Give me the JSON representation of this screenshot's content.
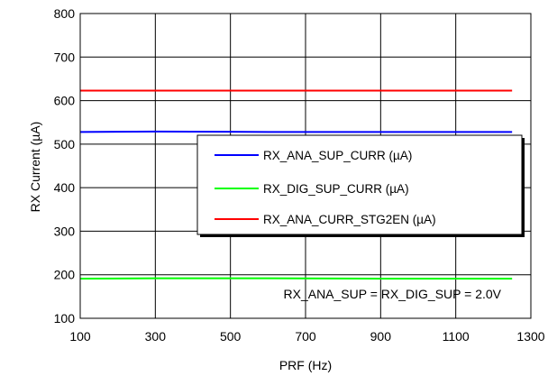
{
  "chart_data": {
    "type": "line",
    "xlabel": "PRF (Hz)",
    "ylabel": "RX Current (µA)",
    "xlim": [
      100,
      1300
    ],
    "ylim": [
      100,
      800
    ],
    "xticks": [
      100,
      300,
      500,
      700,
      900,
      1100,
      1300
    ],
    "yticks": [
      100,
      200,
      300,
      400,
      500,
      600,
      700,
      800
    ],
    "grid": true,
    "legend_position": "right, mid-height",
    "annotation": "RX_ANA_SUP = RX_DIG_SUP = 2.0V",
    "series": [
      {
        "name": "RX_ANA_SUP_CURR (µA)",
        "color": "#0000ff",
        "x": [
          100,
          300,
          600,
          900,
          1250
        ],
        "y": [
          528,
          529,
          528,
          528,
          528
        ]
      },
      {
        "name": "RX_DIG_SUP_CURR (µA)",
        "color": "#00ff00",
        "x": [
          100,
          300,
          600,
          900,
          1250
        ],
        "y": [
          191,
          192,
          192,
          191,
          191
        ]
      },
      {
        "name": "RX_ANA_CURR_STG2EN (µA)",
        "color": "#ff0000",
        "x": [
          100,
          300,
          600,
          900,
          1250
        ],
        "y": [
          623,
          623,
          623,
          623,
          623
        ]
      }
    ]
  }
}
